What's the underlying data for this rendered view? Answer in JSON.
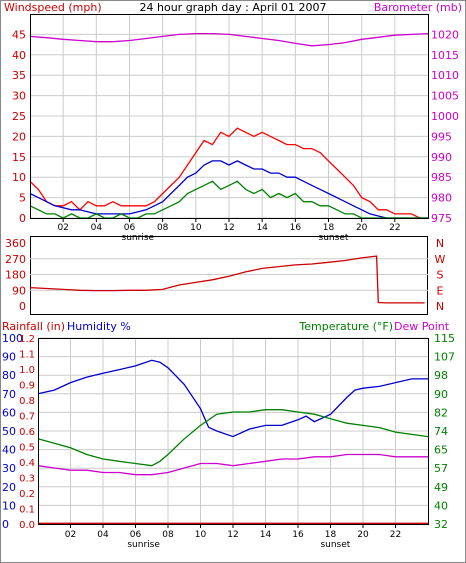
{
  "chart_data": [
    {
      "type": "line",
      "title": "24 hour graph day : April 01 2007",
      "left_axis_label": "Windspeed (mph)",
      "right_axis_label": "Barometer (mb)",
      "left_ticks": [
        0,
        5,
        10,
        15,
        20,
        25,
        30,
        35,
        40,
        45
      ],
      "right_ticks": [
        975,
        980,
        985,
        990,
        995,
        1000,
        1005,
        1010,
        1015,
        1020
      ],
      "x_ticks": [
        "02",
        "04",
        "06",
        "08",
        "10",
        "12",
        "14",
        "16",
        "18",
        "20",
        "22"
      ],
      "x_annotations": [
        {
          "label": "sunrise",
          "x": 6.5
        },
        {
          "label": "sunset",
          "x": 18.3
        }
      ],
      "x_range": [
        0,
        24
      ],
      "left_range": [
        0,
        50
      ],
      "right_range": [
        975,
        1025
      ],
      "series": [
        {
          "name": "",
          "axis": "left",
          "color": "#ff0000",
          "x": [
            0,
            0.5,
            1,
            1.5,
            2,
            2.5,
            3,
            3.5,
            4,
            4.5,
            5,
            5.5,
            6,
            6.5,
            7,
            7.5,
            8,
            8.5,
            9,
            9.5,
            10,
            10.5,
            11,
            11.5,
            12,
            12.5,
            13,
            13.5,
            14,
            14.5,
            15,
            15.5,
            16,
            16.5,
            17,
            17.5,
            18,
            18.5,
            19,
            19.5,
            20,
            20.5,
            21,
            21.5,
            22,
            22.5,
            23,
            23.5,
            24
          ],
          "values": [
            9,
            7,
            4,
            3,
            3,
            4,
            2,
            4,
            3,
            3,
            4,
            3,
            3,
            3,
            3,
            4,
            6,
            8,
            10,
            13,
            16,
            19,
            18,
            21,
            20,
            22,
            21,
            20,
            21,
            20,
            19,
            18,
            18,
            17,
            17,
            16,
            14,
            12,
            10,
            8,
            5,
            4,
            2,
            2,
            1,
            1,
            1,
            0,
            0
          ]
        },
        {
          "name": "",
          "axis": "left",
          "color": "#0000cc",
          "x": [
            0,
            0.5,
            1,
            1.5,
            2,
            2.5,
            3,
            3.5,
            4,
            4.5,
            5,
            5.5,
            6,
            6.5,
            7,
            7.5,
            8,
            8.5,
            9,
            9.5,
            10,
            10.5,
            11,
            11.5,
            12,
            12.5,
            13,
            13.5,
            14,
            14.5,
            15,
            15.5,
            16,
            16.5,
            17,
            17.5,
            18,
            18.5,
            19,
            19.5,
            20,
            20.5,
            21,
            21.5,
            22,
            22.5,
            23,
            23.5,
            24
          ],
          "values": [
            6,
            5,
            4,
            3,
            2.5,
            2,
            2,
            1.5,
            1,
            1,
            1,
            1,
            1,
            1.5,
            2,
            3,
            4,
            6,
            8,
            10,
            11,
            13,
            14,
            14,
            13,
            14,
            13,
            12,
            12,
            11,
            11,
            10,
            10,
            9,
            8,
            7,
            6,
            5,
            4,
            3,
            2,
            1,
            0.5,
            0,
            0,
            0,
            0,
            0,
            0
          ]
        },
        {
          "name": "",
          "axis": "left",
          "color": "#008000",
          "x": [
            0,
            0.5,
            1,
            1.5,
            2,
            2.5,
            3,
            3.5,
            4,
            4.5,
            5,
            5.5,
            6,
            6.5,
            7,
            7.5,
            8,
            8.5,
            9,
            9.5,
            10,
            10.5,
            11,
            11.5,
            12,
            12.5,
            13,
            13.5,
            14,
            14.5,
            15,
            15.5,
            16,
            16.5,
            17,
            17.5,
            18,
            18.5,
            19,
            19.5,
            20,
            20.5,
            21,
            21.5,
            22,
            22.5,
            23,
            23.5,
            24
          ],
          "values": [
            3,
            2,
            1,
            1,
            0,
            1,
            0,
            0,
            1,
            0,
            0,
            1,
            0,
            0,
            1,
            1,
            2,
            3,
            4,
            6,
            7,
            8,
            9,
            7,
            8,
            9,
            7,
            6,
            7,
            5,
            6,
            5,
            6,
            4,
            4,
            3,
            3,
            2,
            1,
            1,
            0,
            0,
            0,
            0,
            0,
            0,
            0,
            0,
            0
          ]
        },
        {
          "name": "",
          "axis": "right",
          "color": "#cc00cc",
          "x": [
            0,
            1,
            2,
            3,
            4,
            5,
            6,
            7,
            8,
            9,
            10,
            11,
            12,
            13,
            14,
            15,
            16,
            17,
            18,
            19,
            20,
            21,
            22,
            23,
            24
          ],
          "values": [
            1019.5,
            1019.2,
            1018.8,
            1018.5,
            1018.2,
            1018.2,
            1018.5,
            1019,
            1019.5,
            1020,
            1020.2,
            1020.2,
            1020,
            1019.5,
            1019,
            1018.5,
            1017.8,
            1017.2,
            1017.5,
            1018,
            1018.8,
            1019.3,
            1019.8,
            1020,
            1020.2
          ]
        }
      ]
    },
    {
      "type": "line",
      "title": "",
      "left_ticks": [
        0,
        90,
        180,
        270,
        360
      ],
      "right_ticks": [
        "N",
        "E",
        "S",
        "W",
        "N"
      ],
      "x_range": [
        0,
        24
      ],
      "left_range": [
        0,
        360
      ],
      "series": [
        {
          "name": "",
          "color": "#cc0000",
          "x": [
            0,
            1,
            2,
            3,
            4,
            5,
            6,
            7,
            8,
            8.5,
            9,
            10,
            11,
            12,
            13,
            14,
            15,
            16,
            17,
            18,
            19,
            20,
            20.9,
            21,
            21.5,
            22,
            23,
            23.8
          ],
          "values": [
            105,
            100,
            95,
            90,
            88,
            88,
            90,
            90,
            95,
            108,
            120,
            135,
            150,
            170,
            195,
            215,
            225,
            235,
            240,
            250,
            260,
            275,
            285,
            20,
            18,
            18,
            18,
            18
          ]
        }
      ]
    },
    {
      "type": "line",
      "title": "",
      "rainfall_label": "Rainfall (in)",
      "humidity_label": "Humidity %",
      "temperature_label": "Temperature (°F)",
      "dewpoint_label": "Dew Point",
      "humidity_ticks": [
        0,
        10,
        20,
        30,
        40,
        50,
        60,
        70,
        80,
        90,
        100
      ],
      "rainfall_ticks": [
        "0.0",
        "0.1",
        "0.2",
        "0.3",
        "0.4",
        "0.5",
        "0.6",
        "0.7",
        "0.8",
        "0.9",
        "1.0",
        "1.1",
        "1.2"
      ],
      "temperature_ticks": [
        32,
        40,
        49,
        57,
        65,
        74,
        82,
        90,
        98,
        107,
        115
      ],
      "x_ticks": [
        "02",
        "04",
        "06",
        "08",
        "10",
        "12",
        "14",
        "16",
        "18",
        "20",
        "22"
      ],
      "x_annotations": [
        {
          "label": "sunrise",
          "x": 6.5
        },
        {
          "label": "sunset",
          "x": 18.3
        }
      ],
      "x_range": [
        0,
        24
      ],
      "humidity_range": [
        0,
        100
      ],
      "temperature_range": [
        32,
        115
      ],
      "series": [
        {
          "name": "",
          "color": "#0000cc",
          "axis": "humidity",
          "x": [
            0,
            1,
            2,
            3,
            4,
            5,
            6,
            7,
            7.5,
            8,
            9,
            10,
            10.5,
            11,
            12,
            13,
            14,
            15,
            16,
            16.5,
            17,
            18,
            19,
            19.5,
            20,
            21,
            22,
            23,
            24
          ],
          "values": [
            70,
            72,
            76,
            79,
            81,
            83,
            85,
            88,
            87,
            84,
            75,
            62,
            52,
            50,
            47,
            51,
            53,
            53,
            56,
            58,
            55,
            59,
            68,
            72,
            73,
            74,
            76,
            78,
            78
          ]
        },
        {
          "name": "",
          "color": "#008000",
          "axis": "temperature",
          "x": [
            0,
            1,
            2,
            3,
            4,
            5,
            6,
            7,
            7.5,
            8,
            9,
            10,
            11,
            12,
            13,
            14,
            15,
            16,
            17,
            18,
            19,
            20,
            21,
            22,
            23,
            24
          ],
          "values": [
            70,
            68,
            66,
            63,
            61,
            60,
            59,
            58,
            60,
            63,
            70,
            76,
            81,
            82,
            82,
            83,
            83,
            82,
            81,
            79,
            77,
            76,
            75,
            73,
            72,
            71
          ]
        },
        {
          "name": "",
          "color": "#cc00cc",
          "axis": "temperature",
          "x": [
            0,
            1,
            2,
            3,
            4,
            5,
            6,
            7,
            8,
            9,
            10,
            11,
            12,
            13,
            14,
            15,
            16,
            17,
            18,
            19,
            20,
            21,
            22,
            23,
            24
          ],
          "values": [
            58,
            57,
            56,
            56,
            55,
            55,
            54,
            54,
            55,
            57,
            59,
            59,
            58,
            59,
            60,
            61,
            61,
            62,
            62,
            63,
            63,
            63,
            62,
            62,
            62
          ]
        },
        {
          "name": "",
          "color": "#cc0000",
          "axis": "humidity",
          "x": [
            0,
            24
          ],
          "values": [
            0.2,
            0.2
          ]
        }
      ]
    }
  ]
}
